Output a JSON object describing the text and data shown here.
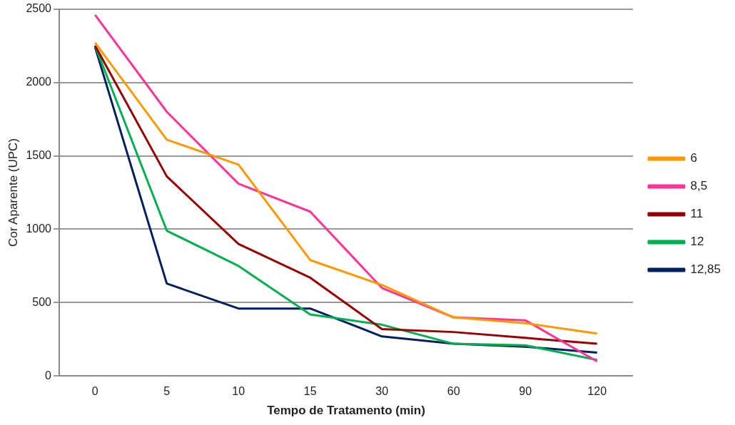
{
  "chart_data": {
    "type": "line",
    "xlabel": "Tempo de Tratamento (min)",
    "ylabel": "Cor Aparente (UPC)",
    "categories": [
      "0",
      "5",
      "10",
      "15",
      "30",
      "60",
      "90",
      "120"
    ],
    "series": [
      {
        "name": "6",
        "color": "#ff9900",
        "values": [
          2270,
          1610,
          1440,
          790,
          620,
          400,
          360,
          290
        ]
      },
      {
        "name": "8,5",
        "color": "#ff3399",
        "values": [
          2460,
          1800,
          1310,
          1120,
          600,
          400,
          380,
          100
        ]
      },
      {
        "name": "11",
        "color": "#990000",
        "values": [
          2250,
          1360,
          900,
          670,
          320,
          300,
          260,
          220
        ]
      },
      {
        "name": "12",
        "color": "#00b050",
        "values": [
          2250,
          990,
          750,
          420,
          350,
          220,
          210,
          110
        ]
      },
      {
        "name": "12,85",
        "color": "#002060",
        "values": [
          2240,
          630,
          460,
          460,
          270,
          220,
          200,
          160
        ]
      }
    ],
    "ylim": [
      0,
      2500
    ],
    "yticks": [
      0,
      500,
      1000,
      1500,
      2000,
      2500
    ],
    "grid": "y",
    "legend": "right",
    "marker": "none",
    "line_style": "solid"
  }
}
